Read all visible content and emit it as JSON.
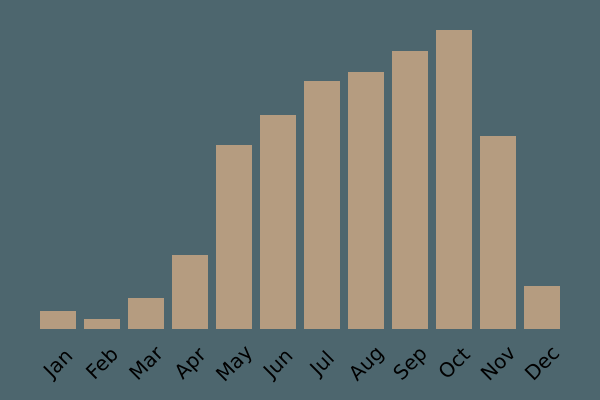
{
  "chart_data": {
    "type": "bar",
    "title": "",
    "xlabel": "",
    "ylabel": "",
    "categories": [
      "Jan",
      "Feb",
      "Mar",
      "Apr",
      "May",
      "Jun",
      "Jul",
      "Aug",
      "Sep",
      "Oct",
      "Nov",
      "Dec"
    ],
    "values": [
      5.9,
      3.2,
      10.1,
      24.5,
      61.5,
      71.5,
      83,
      86,
      93,
      100,
      64.5,
      14.2
    ],
    "values_note": "relative units, max bar (Oct) = 100; no y-axis labels visible in image",
    "ylim": [
      0,
      100
    ],
    "grid": false,
    "legend": null,
    "axes_visible": false,
    "bar_color": "#b59c80",
    "background_color": "#4d666e",
    "tick_label_color": "#000000",
    "tick_label_rotation_deg": 45
  }
}
